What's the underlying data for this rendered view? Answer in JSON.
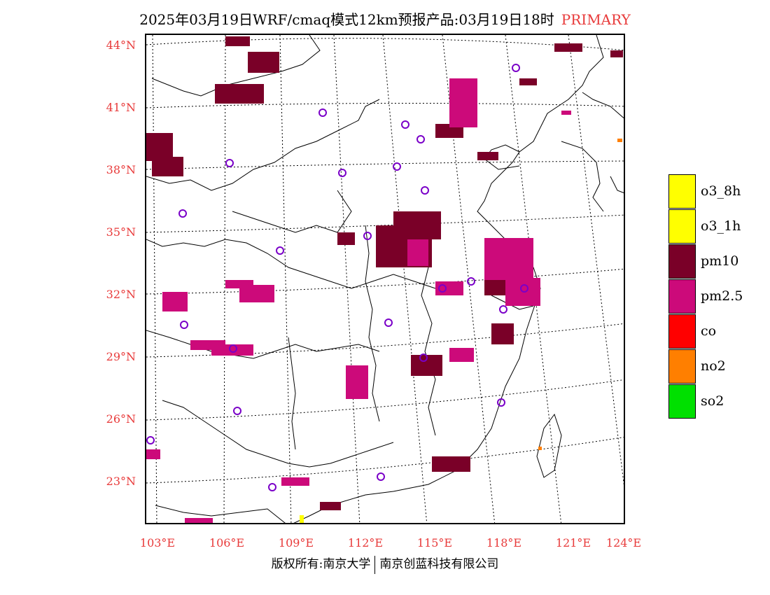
{
  "title": {
    "text": "2025年03月19日WRF/cmaq模式12km预报产品:03月19日18时",
    "tag": "PRIMARY",
    "tag_color": "#e83a3a"
  },
  "axes": {
    "lat_labels": [
      "44°N",
      "41°N",
      "38°N",
      "35°N",
      "32°N",
      "29°N",
      "26°N",
      "23°N"
    ],
    "lon_labels": [
      "103°E",
      "106°E",
      "109°E",
      "112°E",
      "115°E",
      "118°E",
      "121°E",
      "124°E"
    ],
    "label_color": "#e83a3a"
  },
  "legend": [
    {
      "label": "o3_8h",
      "color": "#ffff00"
    },
    {
      "label": "o3_1h",
      "color": "#ffff00"
    },
    {
      "label": "pm10",
      "color": "#7a0028"
    },
    {
      "label": "pm2.5",
      "color": "#cc0a7a"
    },
    {
      "label": "co",
      "color": "#ff0000"
    },
    {
      "label": "no2",
      "color": "#ff7f00"
    },
    {
      "label": "so2",
      "color": "#00e000"
    }
  ],
  "copyright": {
    "left": "版权所有:南京大学",
    "right": "南京创蓝科技有限公司"
  },
  "map": {
    "stations_icon": "circle-station-icon",
    "station_color": "#7a00c8"
  }
}
